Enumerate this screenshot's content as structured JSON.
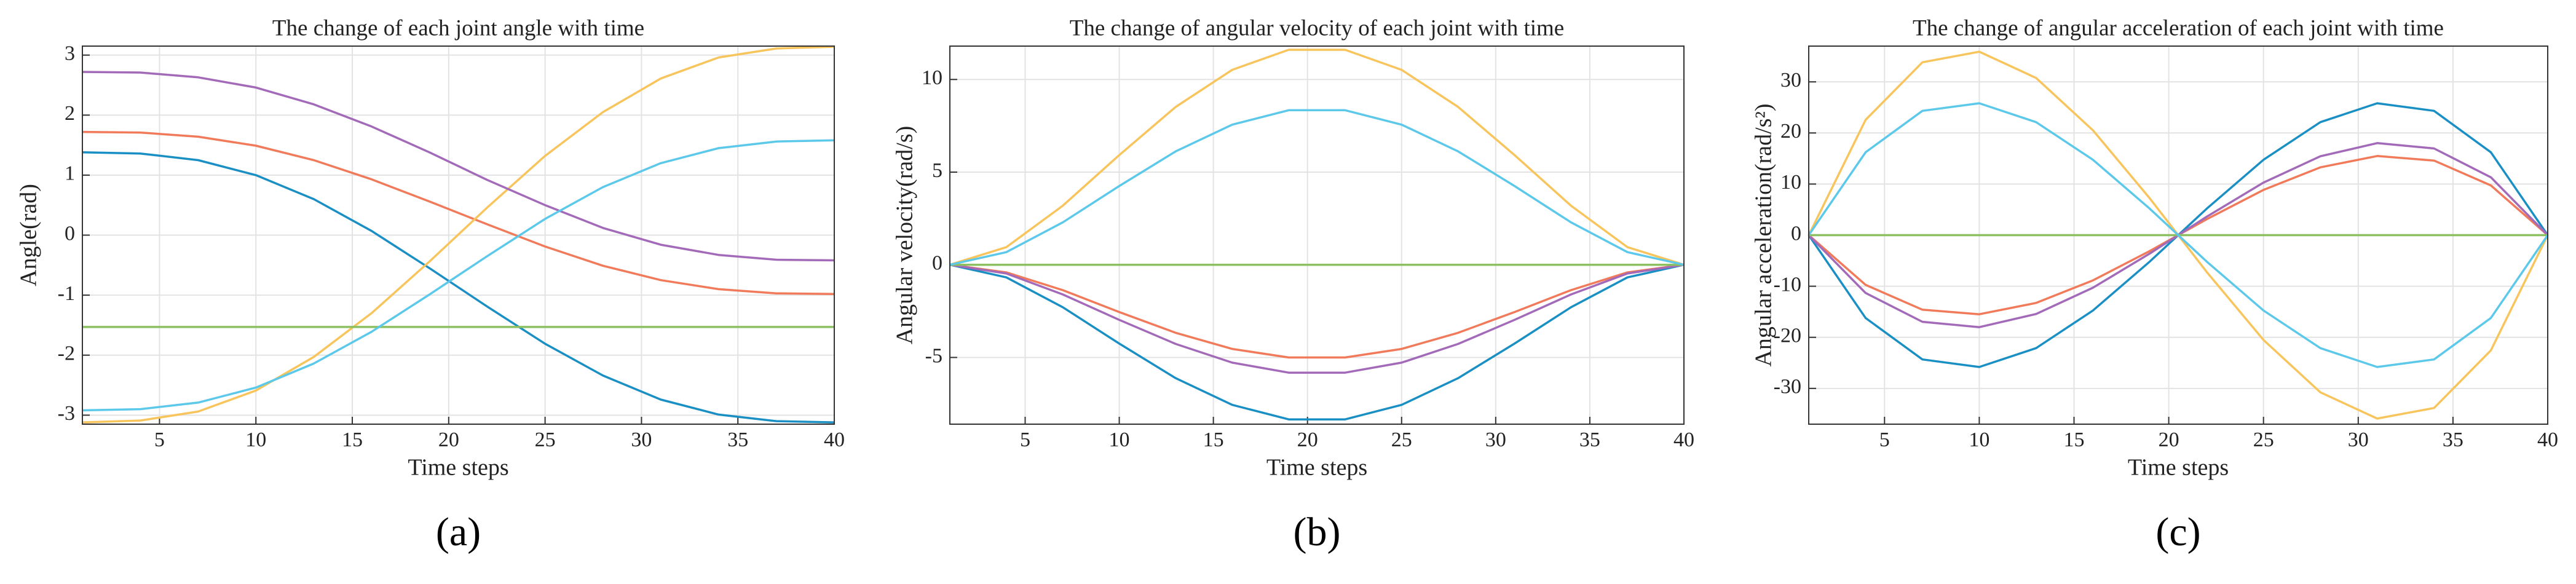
{
  "chart_data": [
    {
      "type": "line",
      "title": "The change of each joint angle with time",
      "x_label": "Time steps",
      "y_label": "Angle(rad)",
      "caption": "(a)",
      "x": [
        1,
        4,
        7,
        10,
        13,
        16,
        19,
        22,
        25,
        28,
        31,
        34,
        37,
        40
      ],
      "xlim": [
        1,
        40
      ],
      "xticks": [
        5,
        10,
        15,
        20,
        25,
        30,
        35,
        40
      ],
      "ylim": [
        -3.15,
        3.15
      ],
      "yticks": [
        -3,
        -2,
        -1,
        0,
        1,
        2,
        3
      ],
      "grid": true,
      "series": [
        {
          "color": "#1a8fc4",
          "values": [
            1.38,
            1.36,
            1.25,
            1.0,
            0.6,
            0.07,
            -0.55,
            -1.19,
            -1.81,
            -2.34,
            -2.74,
            -2.99,
            -3.1,
            -3.12
          ]
        },
        {
          "color": "#f07a5a",
          "values": [
            1.72,
            1.71,
            1.64,
            1.49,
            1.25,
            0.93,
            0.56,
            0.18,
            -0.19,
            -0.51,
            -0.75,
            -0.9,
            -0.97,
            -0.98
          ]
        },
        {
          "color": "#f8c45c",
          "values": [
            -3.12,
            -3.09,
            -2.94,
            -2.59,
            -2.03,
            -1.3,
            -0.44,
            0.46,
            1.32,
            2.05,
            2.61,
            2.96,
            3.11,
            3.14
          ]
        },
        {
          "color": "#a26ab8",
          "values": [
            2.72,
            2.71,
            2.63,
            2.46,
            2.18,
            1.81,
            1.38,
            0.92,
            0.5,
            0.12,
            -0.16,
            -0.33,
            -0.41,
            -0.42
          ]
        },
        {
          "color": "#8cc060",
          "values": [
            -1.53,
            -1.53,
            -1.53,
            -1.53,
            -1.53,
            -1.53,
            -1.53,
            -1.53,
            -1.53,
            -1.53,
            -1.53,
            -1.53,
            -1.53,
            -1.53
          ]
        },
        {
          "color": "#5cc8ea",
          "values": [
            -2.92,
            -2.9,
            -2.79,
            -2.54,
            -2.14,
            -1.61,
            -0.99,
            -0.35,
            0.27,
            0.8,
            1.2,
            1.45,
            1.56,
            1.58
          ]
        }
      ]
    },
    {
      "type": "line",
      "title": "The change of angular velocity of each joint with time",
      "x_label": "Time steps",
      "y_label": "Angular velocity(rad/s)",
      "caption": "(b)",
      "x": [
        1,
        4,
        7,
        10,
        13,
        16,
        19,
        22,
        25,
        28,
        31,
        34,
        37,
        40
      ],
      "xlim": [
        1,
        40
      ],
      "xticks": [
        5,
        10,
        15,
        20,
        25,
        30,
        35,
        40
      ],
      "ylim": [
        -8.6,
        11.8
      ],
      "yticks": [
        -5,
        0,
        5,
        10
      ],
      "grid": true,
      "series": [
        {
          "color": "#1a8fc4",
          "values": [
            0,
            -0.68,
            -2.29,
            -4.25,
            -6.12,
            -7.56,
            -8.34,
            -8.34,
            -7.56,
            -6.12,
            -4.25,
            -2.29,
            -0.68,
            0
          ]
        },
        {
          "color": "#f07a5a",
          "values": [
            0,
            -0.41,
            -1.37,
            -2.55,
            -3.67,
            -4.54,
            -5.0,
            -5.0,
            -4.54,
            -3.67,
            -2.55,
            -1.37,
            -0.41,
            0
          ]
        },
        {
          "color": "#f8c45c",
          "values": [
            0,
            0.95,
            3.19,
            5.92,
            8.52,
            10.52,
            11.6,
            11.6,
            10.52,
            8.52,
            5.92,
            3.19,
            0.95,
            0
          ]
        },
        {
          "color": "#a26ab8",
          "values": [
            0,
            -0.47,
            -1.6,
            -2.97,
            -4.27,
            -5.28,
            -5.82,
            -5.82,
            -5.28,
            -4.27,
            -2.97,
            -1.6,
            -0.47,
            0
          ]
        },
        {
          "color": "#8cc060",
          "values": [
            0,
            0,
            0,
            0,
            0,
            0,
            0,
            0,
            0,
            0,
            0,
            0,
            0,
            0
          ]
        },
        {
          "color": "#5cc8ea",
          "values": [
            0,
            0.68,
            2.29,
            4.25,
            6.12,
            7.56,
            8.34,
            8.34,
            7.56,
            6.12,
            4.25,
            2.29,
            0.68,
            0
          ]
        }
      ]
    },
    {
      "type": "line",
      "title": "The change of angular acceleration of each joint with time",
      "x_label": "Time steps",
      "y_label": "Angular acceleration(rad/s²)",
      "caption": "(c)",
      "x": [
        1,
        4,
        7,
        10,
        13,
        16,
        19,
        22,
        25,
        28,
        31,
        34,
        37,
        40
      ],
      "xlim": [
        1,
        40
      ],
      "xticks": [
        5,
        10,
        15,
        20,
        25,
        30,
        35,
        40
      ],
      "ylim": [
        -37,
        37
      ],
      "yticks": [
        -30,
        -20,
        -10,
        0,
        10,
        20,
        30
      ],
      "grid": true,
      "series": [
        {
          "color": "#1a8fc4",
          "values": [
            0,
            -16.22,
            -24.33,
            -25.81,
            -22.12,
            -14.75,
            -5.16,
            5.16,
            14.75,
            22.12,
            25.81,
            24.33,
            16.22,
            0
          ]
        },
        {
          "color": "#f07a5a",
          "values": [
            0,
            -9.73,
            -14.6,
            -15.49,
            -13.27,
            -8.85,
            -3.1,
            3.1,
            8.85,
            13.27,
            15.49,
            14.6,
            9.73,
            0
          ]
        },
        {
          "color": "#f8c45c",
          "values": [
            0,
            22.56,
            33.84,
            35.91,
            30.77,
            20.52,
            7.18,
            -7.18,
            -20.52,
            -30.77,
            -35.91,
            -33.84,
            -22.56,
            0
          ]
        },
        {
          "color": "#a26ab8",
          "values": [
            0,
            -11.32,
            -16.97,
            -18.01,
            -15.44,
            -10.29,
            -3.6,
            3.6,
            10.29,
            15.44,
            18.01,
            16.97,
            11.32,
            0
          ]
        },
        {
          "color": "#8cc060",
          "values": [
            0,
            0,
            0,
            0,
            0,
            0,
            0,
            0,
            0,
            0,
            0,
            0,
            0,
            0
          ]
        },
        {
          "color": "#5cc8ea",
          "values": [
            0,
            16.22,
            24.33,
            25.81,
            22.12,
            14.75,
            5.16,
            -5.16,
            -14.75,
            -22.12,
            -25.81,
            -24.33,
            -16.22,
            0
          ]
        }
      ]
    }
  ]
}
